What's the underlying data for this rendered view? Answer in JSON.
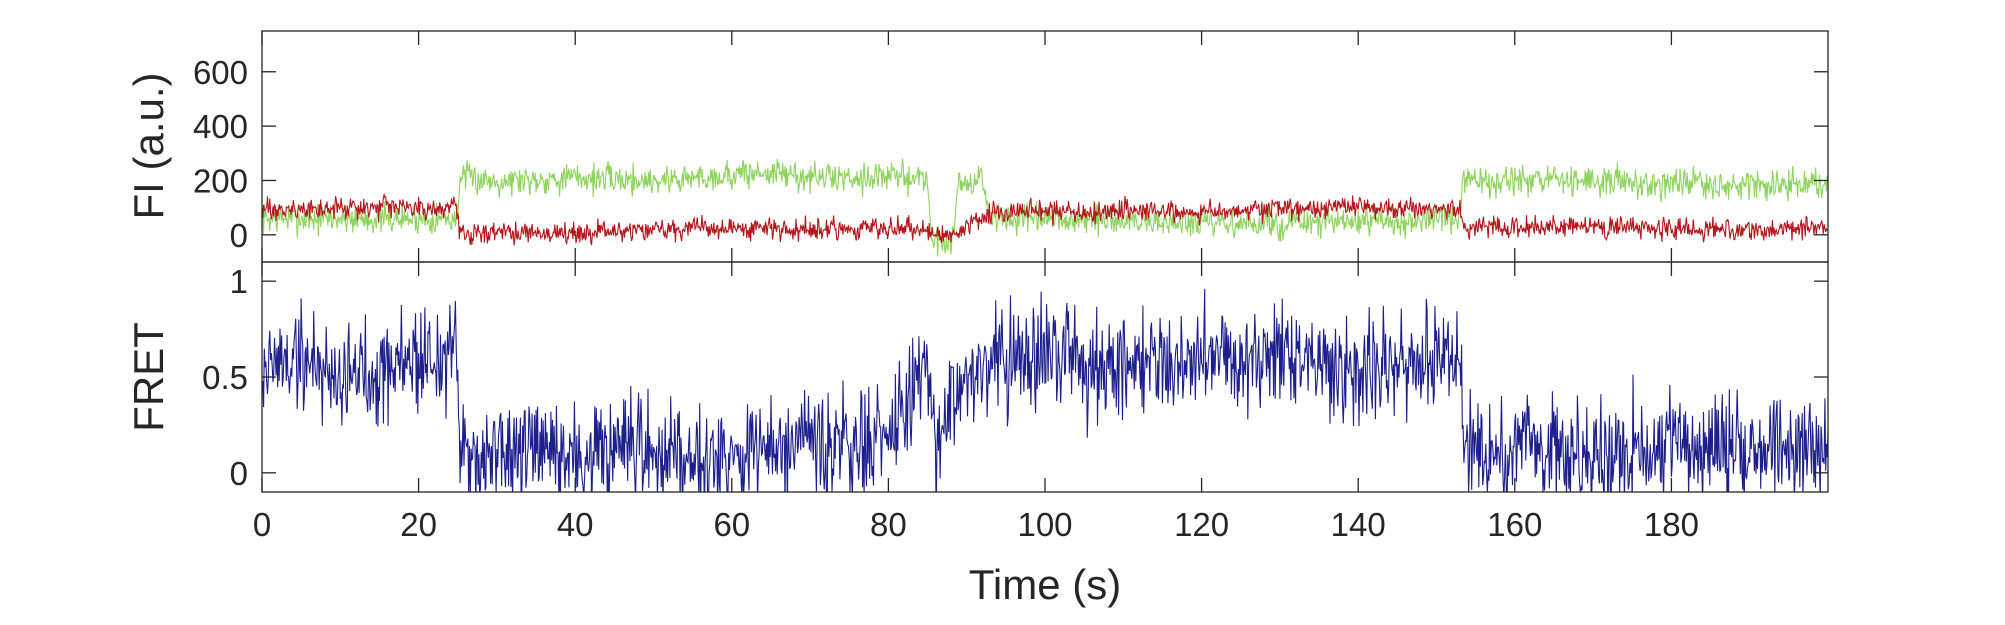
{
  "chart_data": [
    {
      "type": "line",
      "ylabel": "FI (a.u.)",
      "xlim": [
        0,
        200
      ],
      "ylim": [
        -100,
        750
      ],
      "yticks": [
        0,
        200,
        400,
        600
      ],
      "xticks": [
        0,
        20,
        40,
        60,
        80,
        100,
        120,
        140,
        160,
        180
      ],
      "grid": false,
      "legend": "none",
      "series": [
        {
          "color": "#8fd45e",
          "x": [
            0,
            25,
            25.2,
            30,
            40,
            50,
            60,
            65,
            70,
            80,
            85,
            85.5,
            88,
            89,
            92,
            93,
            100,
            110,
            120,
            130,
            140,
            150,
            153,
            153.5,
            160,
            170,
            180,
            190,
            200
          ],
          "values": [
            60,
            60,
            210,
            200,
            210,
            200,
            220,
            230,
            210,
            215,
            210,
            -20,
            -30,
            190,
            200,
            60,
            55,
            50,
            40,
            40,
            45,
            55,
            60,
            200,
            195,
            200,
            190,
            180,
            185
          ]
        },
        {
          "color": "#b5161c",
          "x": [
            0,
            10,
            20,
            25,
            25.2,
            30,
            40,
            50,
            60,
            70,
            80,
            85,
            88,
            93,
            100,
            110,
            120,
            130,
            140,
            150,
            153,
            153.5,
            160,
            170,
            180,
            190,
            200
          ],
          "values": [
            90,
            95,
            100,
            100,
            10,
            5,
            10,
            20,
            25,
            20,
            25,
            20,
            -10,
            80,
            85,
            90,
            85,
            95,
            100,
            90,
            95,
            30,
            25,
            30,
            25,
            20,
            25
          ]
        }
      ]
    },
    {
      "type": "line",
      "xlabel": "Time (s)",
      "ylabel": "FRET",
      "xlim": [
        0,
        200
      ],
      "ylim": [
        -0.1,
        1.1
      ],
      "yticks": [
        0,
        0.5,
        1
      ],
      "ytick_labels": [
        "0",
        "0.5",
        "1"
      ],
      "xticks": [
        0,
        20,
        40,
        60,
        80,
        100,
        120,
        140,
        160,
        180
      ],
      "grid": false,
      "legend": "none",
      "series": [
        {
          "color": "#1c1f8c",
          "x": [
            0,
            5,
            10,
            15,
            20,
            25,
            25.2,
            30,
            40,
            50,
            53,
            60,
            70,
            80,
            85,
            86,
            88,
            90,
            93,
            100,
            110,
            120,
            130,
            140,
            150,
            153,
            153.5,
            160,
            170,
            180,
            190,
            200
          ],
          "values": [
            0.55,
            0.6,
            0.5,
            0.55,
            0.6,
            0.6,
            0.1,
            0.1,
            0.08,
            0.1,
            0.12,
            0.1,
            0.12,
            0.15,
            0.6,
            0.1,
            0.4,
            0.5,
            0.6,
            0.6,
            0.58,
            0.62,
            0.6,
            0.55,
            0.58,
            0.6,
            0.15,
            0.14,
            0.12,
            0.13,
            0.12,
            0.14
          ]
        }
      ]
    }
  ]
}
